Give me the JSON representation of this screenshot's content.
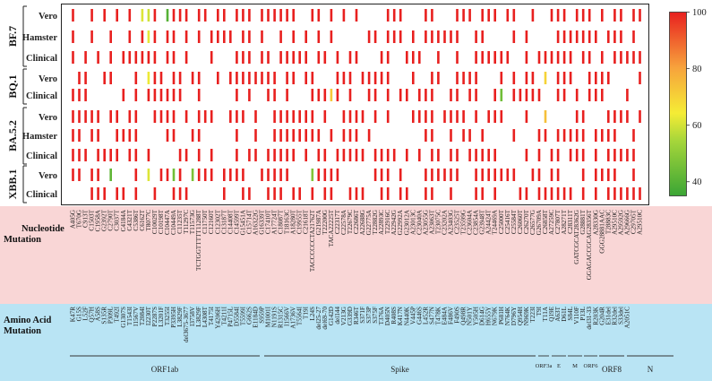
{
  "chart_data": {
    "type": "heatmap",
    "value_range": [
      35,
      100
    ],
    "colorbar_ticks": [
      "40",
      "60",
      "80",
      "100"
    ],
    "colorscale": [
      "#3aa535",
      "#a6d63a",
      "#f5ec35",
      "#f7a23c",
      "#e8201f"
    ],
    "groups": [
      {
        "name": "BF.7",
        "rows": [
          "Vero",
          "Hamster",
          "Clinical"
        ]
      },
      {
        "name": "BQ.1",
        "rows": [
          "Vero",
          "Clinical"
        ]
      },
      {
        "name": "BA.5.2",
        "rows": [
          "Vero",
          "Hamster",
          "Clinical"
        ]
      },
      {
        "name": "XBB.1",
        "rows": [
          "Vero",
          "Clinical"
        ]
      }
    ],
    "nt_mutations": [
      "A405G",
      "T670G",
      "C913T",
      "C1503T",
      "C1958A",
      "G2392T",
      "C2790T",
      "C3037T",
      "C4184A",
      "C4321T",
      "C5386T",
      "C6162T",
      "T8077C",
      "C10029T",
      "C10198T",
      "C10447A",
      "C10449A",
      "C11235T",
      "T11297C",
      "T11573G",
      "TCTGGTTTTT11288T",
      "C11750T",
      "C12160T",
      "C12302T",
      "C13187T",
      "C14408T",
      "C14599T",
      "G15451A",
      "C15714T",
      "A16322G",
      "G16339T",
      "C17410T",
      "A17724T",
      "C18087T",
      "T18163C",
      "A18280T",
      "C19955T",
      "C21618T",
      "TACCCCCCTA21762T",
      "G21987A",
      "T22200G",
      "TACA22225T",
      "C22317T",
      "C22578A",
      "T22679C",
      "C22686T",
      "A22688G",
      "G22775A",
      "T22882G",
      "A22893C",
      "T22916C",
      "A22942G",
      "G22992A",
      "G23012A",
      "A23013C",
      "C23040A",
      "A23055G",
      "A23063T",
      "T23075C",
      "C23202A",
      "A23403G",
      "C23525T",
      "T23599G",
      "C23604A",
      "C23854A",
      "G23948T",
      "A24424T",
      "T24469A",
      "C25000T",
      "C25416T",
      "C25584T",
      "C26060T",
      "C26270T",
      "C26577G",
      "G26709A",
      "C26858T",
      "A27259C",
      "C27807T",
      "A28271T",
      "C28311T",
      "GATCGCAT28362G",
      "G28881T",
      "GGAGACCGCAG28356T",
      "A28330G",
      "GGG28881AAC",
      "T28883C",
      "A29510C",
      "A29592G",
      "A29666G",
      "C29705T",
      "A29510C"
    ],
    "aa_mutations": [
      "K47R",
      "G15S",
      "L52F",
      "Q57H",
      "A58S",
      "S135R",
      "P309L",
      "T492I",
      "G1307S",
      "T1543I",
      "I1567V",
      "T2084I",
      "I2230T",
      "P2287S",
      "L3201F",
      "T3255I",
      "P3395H",
      "L3829F",
      "del3675-3677",
      "I3758V",
      "L3829F",
      "L4308T",
      "T4175I",
      "Y4206H",
      "T4211I",
      "P4715L",
      "D5584I",
      "T5599I",
      "G662S",
      "E1184D",
      "S959P",
      "M1001I",
      "N1191S",
      "R1315C",
      "I1566V",
      "A1736V",
      "T5564I",
      "T19I",
      "L24S",
      "del25-27",
      "del69-70",
      "G142D",
      "del144",
      "V213G",
      "G339D",
      "R346T",
      "S371F",
      "S373P",
      "S375F",
      "T376A",
      "D405N",
      "R408S",
      "K417N",
      "N440K",
      "V445P",
      "G446S",
      "L452R",
      "S477N",
      "T478K",
      "E484A",
      "F486V",
      "F490S",
      "Q498R",
      "N501Y",
      "Y505H",
      "D614G",
      "H655Y",
      "N679K",
      "P681H",
      "N764K",
      "D796Y",
      "Q954H",
      "N969K",
      "T223I",
      "T9I",
      "T11A",
      "Q19E",
      "A63T",
      "D61L",
      "S84L",
      "V110F",
      "P13L",
      "del31-33",
      "R203K",
      "G204R",
      "E31del",
      "R32del",
      "S33del",
      "A2051C"
    ],
    "gene_labels": [
      "ORF1ab",
      "Spike",
      "ORF3a",
      "E",
      "M",
      "ORF6",
      "ORF8",
      "N"
    ],
    "row_labels_left": {
      "nt": "Nucleotide Mutation",
      "aa": "Amino Acid Mutation"
    }
  }
}
